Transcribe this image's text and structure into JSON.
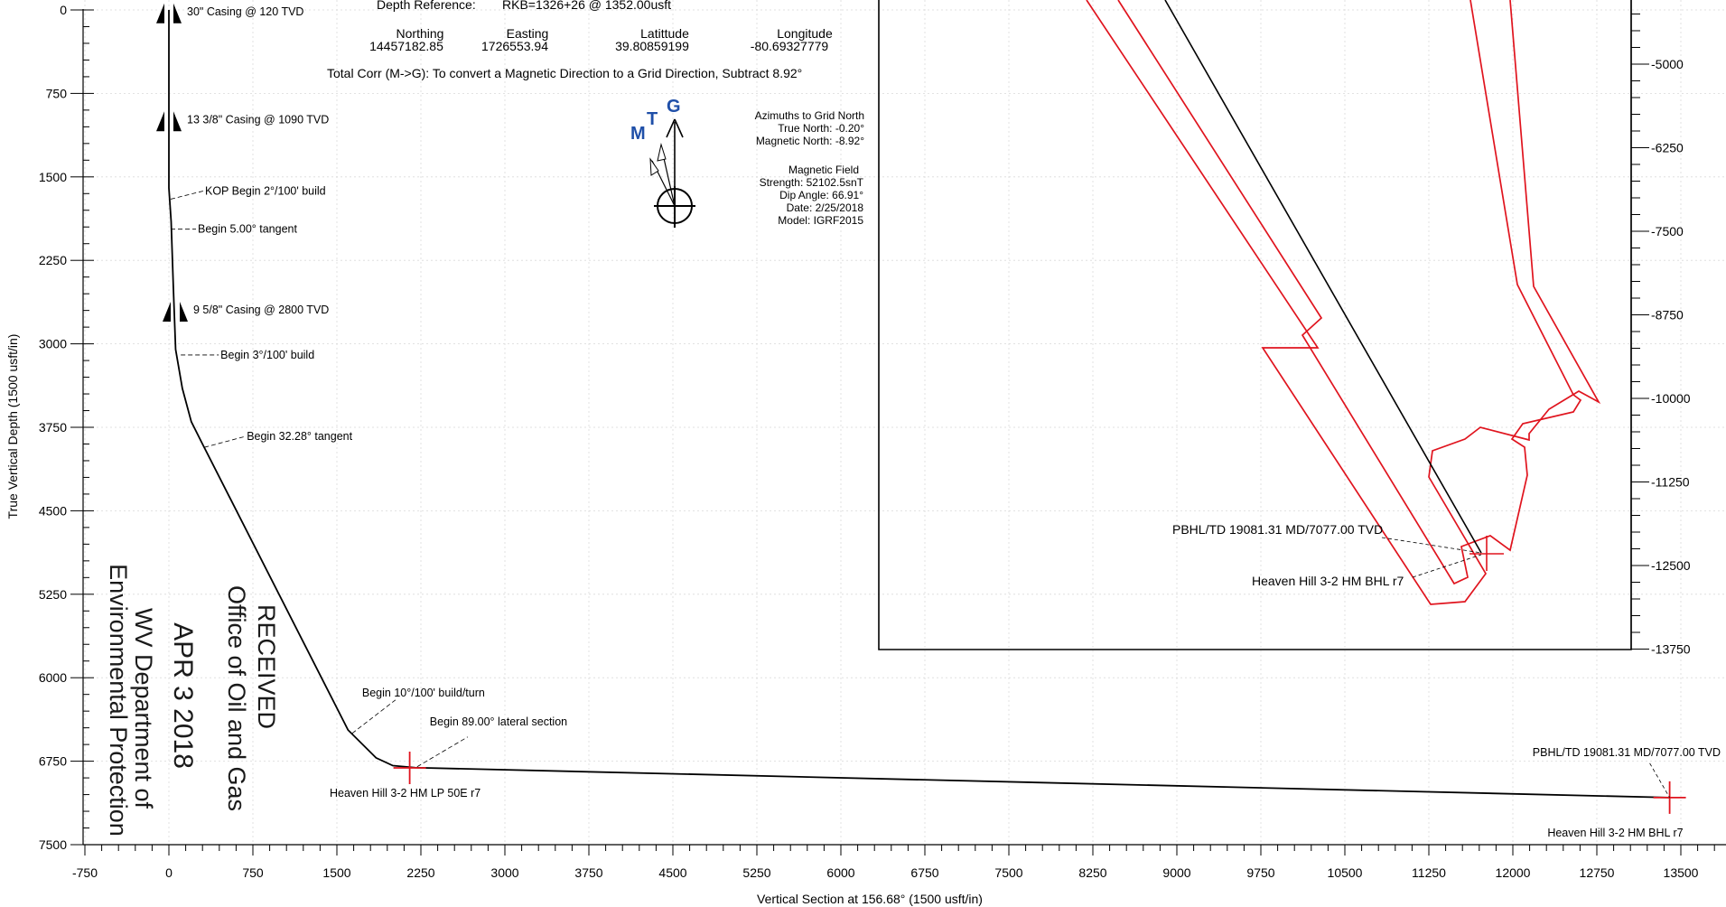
{
  "chart_data": {
    "type": "line",
    "xlabel": "Vertical Section at 156.68° (1500 usft/in)",
    "ylabel": "True Vertical Depth (1500 usft/in)",
    "xlim": [
      -750,
      14000
    ],
    "ylim": [
      0,
      7500
    ],
    "y_inverted": true,
    "x_ticks": [
      -750,
      0,
      750,
      1500,
      2250,
      3000,
      3750,
      4500,
      5250,
      6000,
      6750,
      7500,
      8250,
      9000,
      9750,
      10500,
      11250,
      12000,
      12750,
      13500
    ],
    "y_ticks": [
      0,
      750,
      1500,
      2250,
      3000,
      3750,
      4500,
      5250,
      6000,
      6750,
      7500
    ],
    "grid": true,
    "series": [
      {
        "points": [
          [
            0,
            0
          ],
          [
            0,
            1600
          ],
          [
            20,
            1900
          ],
          [
            40,
            2500
          ],
          [
            60,
            3050
          ],
          [
            120,
            3400
          ],
          [
            200,
            3700
          ],
          [
            300,
            3900
          ],
          [
            1600,
            6470
          ],
          [
            1850,
            6720
          ],
          [
            2000,
            6790
          ],
          [
            2200,
            6808
          ],
          [
            13400,
            7077
          ]
        ]
      }
    ],
    "casing_markers": [
      {
        "x": 0,
        "y": 120,
        "label": "30\" Casing @ 120 TVD"
      },
      {
        "x": 0,
        "y": 1090,
        "label": "13 3/8\" Casing @ 1090 TVD"
      },
      {
        "x": 0,
        "y": 2800,
        "label": "9 5/8\" Casing @ 2800 TVD"
      }
    ],
    "annotations": [
      {
        "x": 0,
        "y": 1700,
        "label": "KOP Begin 2°/100' build"
      },
      {
        "x": 0,
        "y": 1970,
        "label": "Begin 5.00° tangent"
      },
      {
        "x": 90,
        "y": 3100,
        "label": "Begin 3°/100' build"
      },
      {
        "x": 300,
        "y": 3930,
        "label": "Begin 32.28° tangent"
      },
      {
        "x": 1620,
        "y": 6500,
        "label": "Begin 10°/100' build/turn"
      },
      {
        "x": 2200,
        "y": 6800,
        "label": "Begin 89.00° lateral section"
      }
    ],
    "targets": [
      {
        "x": 2150,
        "y": 6810,
        "label": "Heaven Hill 3-2 HM LP 50E r7"
      },
      {
        "x": 13400,
        "y": 7077,
        "label": "Heaven Hill 3-2 HM BHL r7",
        "pbhl_label": "PBHL/TD 19081.31 MD/7077.00 TVD"
      }
    ]
  },
  "header": {
    "depth_reference_label": "Depth Reference:",
    "depth_reference_value": "RKB=1326+26 @ 1352.00usft",
    "northing_label": "Northing",
    "northing_value": "14457182.85",
    "easting_label": "Easting",
    "easting_value": "1726553.94",
    "latitude_label": "Latittude",
    "latitude_value": "39.80859199",
    "longitude_label": "Longitude",
    "longitude_value": "-80.69327779",
    "correction": "Total Corr (M->G):   To convert a Magnetic Direction to a Grid Direction, Subtract 8.92°"
  },
  "north_arrow": {
    "m": "M",
    "t": "T",
    "g": "G"
  },
  "azimuths": {
    "line1": "Azimuths to Grid North",
    "line2": "True North: -0.20°",
    "line3": "Magnetic North: -8.92°",
    "line4": "Magnetic Field",
    "line5": "Strength: 52102.5snT",
    "line6": "Dip Angle: 66.91°",
    "line7": "Date: 2/25/2018",
    "line8": "Model: IGRF2015"
  },
  "inset": {
    "y_ticks": [
      "-5000",
      "-6250",
      "-7500",
      "-8750",
      "-10000",
      "-11250",
      "-12500",
      "-13750"
    ],
    "pbhl_label": "PBHL/TD 19081.31 MD/7077.00 TVD",
    "bhl_label": "Heaven Hill 3-2 HM BHL r7",
    "boundary_color": "#e0141e"
  },
  "stamp": {
    "line1": "RECEIVED",
    "line2": "Office of Oil and Gas",
    "date": "APR   3 2018",
    "line3": "WV Department of",
    "line4": "Environmental Protection"
  },
  "colors": {
    "target": "#e0141e",
    "north": "#1f4fa8",
    "grid": "#d9d9d9"
  }
}
